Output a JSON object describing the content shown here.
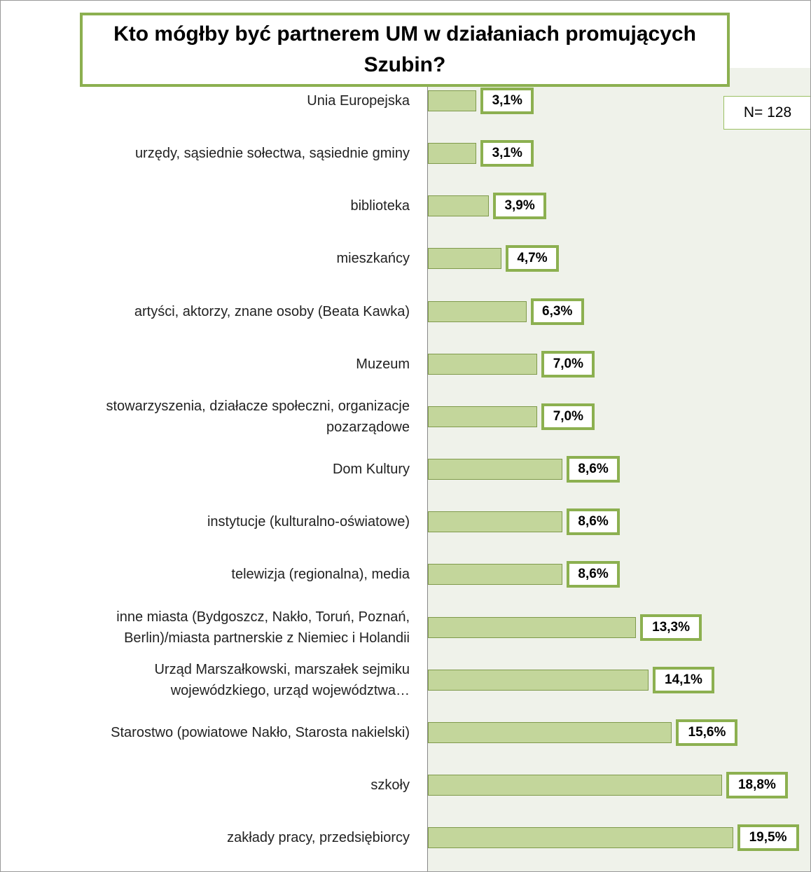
{
  "chart_data": {
    "type": "bar",
    "orientation": "horizontal",
    "title": "Kto mógłby być partnerem UM w działaniach promujących Szubin?",
    "annotation": "N= 128",
    "categories": [
      "Unia Europejska",
      "urzędy, sąsiednie sołectwa, sąsiednie gminy",
      "biblioteka",
      "mieszkańcy",
      "artyści, aktorzy, znane osoby (Beata Kawka)",
      "Muzeum",
      "stowarzyszenia, działacze społeczni, organizacje\npozarządowe",
      "Dom Kultury",
      "instytucje (kulturalno-oświatowe)",
      "telewizja (regionalna), media",
      "inne miasta (Bydgoszcz, Nakło, Toruń, Poznań,\nBerlin)/miasta partnerskie z Niemiec i Holandii",
      "Urząd Marszałkowski, marszałek sejmiku\nwojewódzkiego, urząd województwa…",
      "Starostwo (powiatowe Nakło, Starosta nakielski)",
      "szkoły",
      "zakłady pracy, przedsiębiorcy"
    ],
    "values": [
      3.1,
      3.1,
      3.9,
      4.7,
      6.3,
      7.0,
      7.0,
      8.6,
      8.6,
      8.6,
      13.3,
      14.1,
      15.6,
      18.8,
      19.5
    ],
    "value_labels": [
      "3,1%",
      "3,1%",
      "3,9%",
      "4,7%",
      "6,3%",
      "7,0%",
      "7,0%",
      "8,6%",
      "8,6%",
      "8,6%",
      "13,3%",
      "14,1%",
      "15,6%",
      "18,8%",
      "19,5%"
    ],
    "color": "#c3d69b",
    "xlim": [
      0,
      24.4
    ]
  }
}
